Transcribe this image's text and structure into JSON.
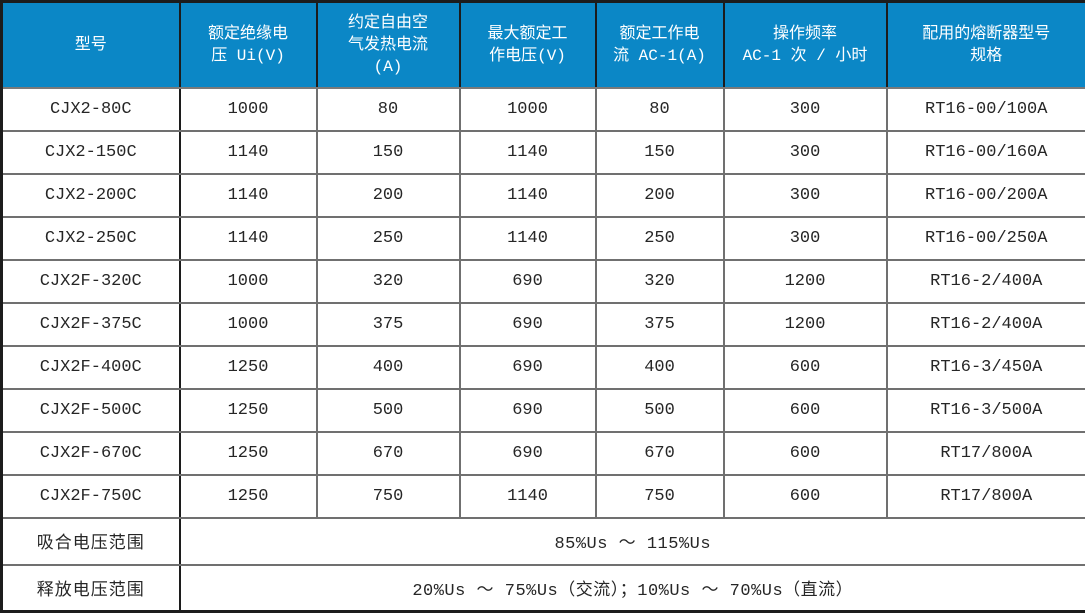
{
  "table": {
    "columns": [
      "型号",
      "额定绝缘电\n压 Ui(V)",
      "约定自由空\n气发热电流\n(A)",
      "最大额定工\n作电压(V)",
      "额定工作电\n流 AC-1(A)",
      "操作频率\nAC-1 次 / 小时",
      "配用的熔断器型号\n规格"
    ],
    "rows": [
      [
        "CJX2-80C",
        "1000",
        "80",
        "1000",
        "80",
        "300",
        "RT16-00/100A"
      ],
      [
        "CJX2-150C",
        "1140",
        "150",
        "1140",
        "150",
        "300",
        "RT16-00/160A"
      ],
      [
        "CJX2-200C",
        "1140",
        "200",
        "1140",
        "200",
        "300",
        "RT16-00/200A"
      ],
      [
        "CJX2-250C",
        "1140",
        "250",
        "1140",
        "250",
        "300",
        "RT16-00/250A"
      ],
      [
        "CJX2F-320C",
        "1000",
        "320",
        "690",
        "320",
        "1200",
        "RT16-2/400A"
      ],
      [
        "CJX2F-375C",
        "1000",
        "375",
        "690",
        "375",
        "1200",
        "RT16-2/400A"
      ],
      [
        "CJX2F-400C",
        "1250",
        "400",
        "690",
        "400",
        "600",
        "RT16-3/450A"
      ],
      [
        "CJX2F-500C",
        "1250",
        "500",
        "690",
        "500",
        "600",
        "RT16-3/500A"
      ],
      [
        "CJX2F-670C",
        "1250",
        "670",
        "690",
        "670",
        "600",
        "RT17/800A"
      ],
      [
        "CJX2F-750C",
        "1250",
        "750",
        "1140",
        "750",
        "600",
        "RT17/800A"
      ]
    ],
    "footer_rows": [
      {
        "label": "吸合电压范围",
        "value": "85%Us ～ 115%Us"
      },
      {
        "label": "释放电压范围",
        "value": "20%Us ～ 75%Us（交流）；10%Us ～ 70%Us（直流）"
      }
    ]
  },
  "colors": {
    "header_background": "#0b87c6",
    "header_text": "#ffffff",
    "outer_border": "#1c1c1c",
    "grid_line": "#707070",
    "body_text": "#262626"
  }
}
